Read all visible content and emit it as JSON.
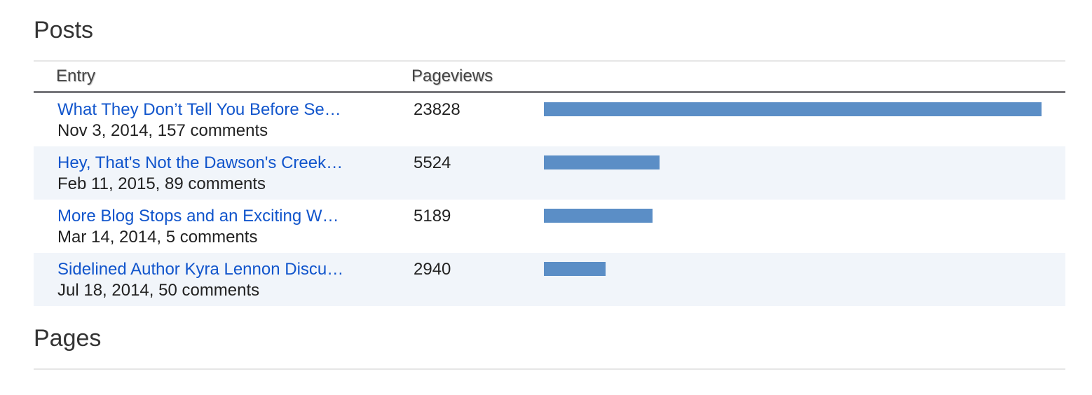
{
  "posts": {
    "title": "Posts",
    "table": {
      "headers": [
        "Entry",
        "Pageviews"
      ],
      "rows": [
        {
          "title": "What They Don’t Tell You Before Se…",
          "meta": "Nov 3, 2014, 157 comments",
          "pageviews": 23828
        },
        {
          "title": "Hey, That's Not the Dawson's Creek…",
          "meta": "Feb 11, 2015, 89 comments",
          "pageviews": 5524
        },
        {
          "title": "More Blog Stops and an Exciting W…",
          "meta": "Mar 14, 2014, 5 comments",
          "pageviews": 5189
        },
        {
          "title": "Sidelined Author Kyra Lennon Discu…",
          "meta": "Jul 18, 2014, 50 comments",
          "pageviews": 2940
        }
      ]
    }
  },
  "pages": {
    "title": "Pages"
  }
}
